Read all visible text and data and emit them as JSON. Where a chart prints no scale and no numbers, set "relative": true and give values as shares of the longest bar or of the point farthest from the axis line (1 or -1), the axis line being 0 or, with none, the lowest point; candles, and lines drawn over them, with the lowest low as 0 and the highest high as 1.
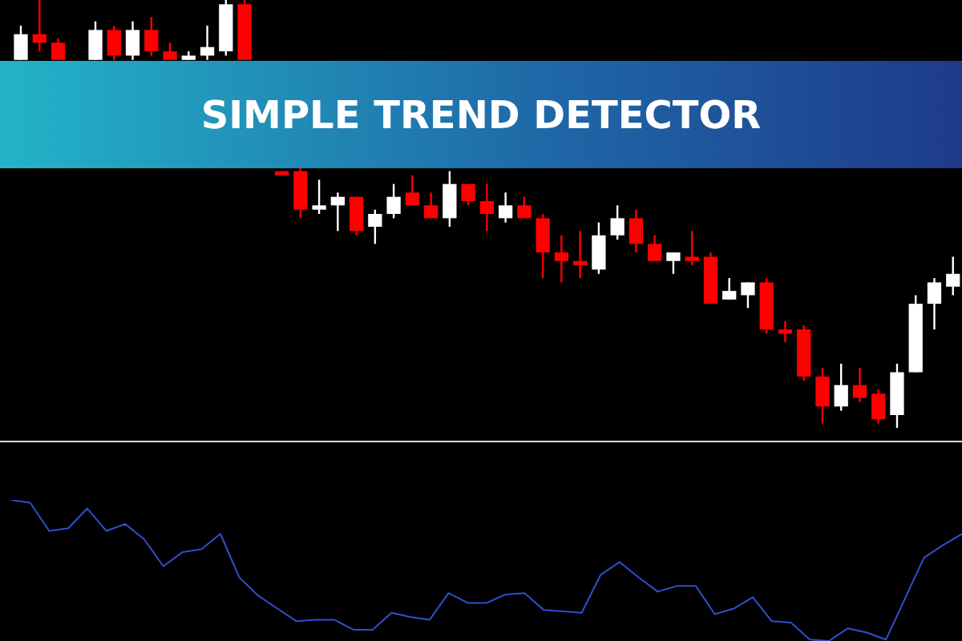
{
  "chart_data": [
    {
      "type": "candlestick",
      "title": "SIMPLE TREND DETECTOR",
      "relative": true,
      "tick_labels": false,
      "categories": [
        null,
        null,
        null,
        null,
        null,
        null,
        null,
        null,
        null,
        null,
        null,
        null,
        null,
        null,
        null,
        null,
        null,
        null,
        null,
        null,
        null,
        null,
        null,
        null,
        null,
        null,
        null,
        null,
        null,
        null,
        null,
        null,
        null,
        null,
        null,
        null,
        null,
        null,
        null,
        null,
        null,
        null,
        null,
        null,
        null,
        null,
        null,
        null,
        null,
        null,
        null
      ],
      "ohlc": [
        [
          0.86,
          0.94,
          0.86,
          0.92
        ],
        [
          0.92,
          1,
          0.88,
          0.9
        ],
        [
          0.9,
          0.91,
          0.86,
          0.86
        ],
        null,
        [
          0.86,
          0.95,
          0.86,
          0.93
        ],
        [
          0.93,
          0.94,
          0.86,
          0.87
        ],
        [
          0.87,
          0.95,
          0.86,
          0.93
        ],
        [
          0.93,
          0.96,
          0.87,
          0.88
        ],
        [
          0.88,
          0.9,
          0.86,
          0.86
        ],
        [
          0.86,
          0.88,
          0.86,
          0.87
        ],
        [
          0.87,
          0.94,
          0.86,
          0.89
        ],
        [
          0.88,
          1,
          0.87,
          0.99
        ],
        [
          0.99,
          1,
          0.86,
          0.86
        ],
        null,
        [
          0.6,
          0.6,
          0.59,
          0.59
        ],
        [
          0.6,
          0.61,
          0.49,
          0.51
        ],
        [
          0.51,
          0.58,
          0.5,
          0.52
        ],
        [
          0.52,
          0.55,
          0.46,
          0.54
        ],
        [
          0.54,
          0.54,
          0.45,
          0.46
        ],
        [
          0.47,
          0.51,
          0.43,
          0.5
        ],
        [
          0.5,
          0.57,
          0.49,
          0.54
        ],
        [
          0.55,
          0.59,
          0.52,
          0.52
        ],
        [
          0.52,
          0.55,
          0.49,
          0.49
        ],
        [
          0.49,
          0.6,
          0.47,
          0.57
        ],
        [
          0.57,
          0.57,
          0.52,
          0.53
        ],
        [
          0.53,
          0.57,
          0.46,
          0.5
        ],
        [
          0.49,
          0.55,
          0.48,
          0.52
        ],
        [
          0.52,
          0.54,
          0.49,
          0.49
        ],
        [
          0.49,
          0.5,
          0.35,
          0.41
        ],
        [
          0.41,
          0.45,
          0.34,
          0.39
        ],
        [
          0.39,
          0.46,
          0.35,
          0.38
        ],
        [
          0.37,
          0.48,
          0.36,
          0.45
        ],
        [
          0.45,
          0.52,
          0.44,
          0.49
        ],
        [
          0.49,
          0.51,
          0.41,
          0.43
        ],
        [
          0.43,
          0.45,
          0.39,
          0.39
        ],
        [
          0.39,
          0.41,
          0.36,
          0.41
        ],
        [
          0.4,
          0.46,
          0.38,
          0.39
        ],
        [
          0.4,
          0.41,
          0.29,
          0.29
        ],
        [
          0.3,
          0.35,
          0.3,
          0.32
        ],
        [
          0.31,
          0.34,
          0.28,
          0.34
        ],
        [
          0.34,
          0.35,
          0.22,
          0.23
        ],
        [
          0.23,
          0.25,
          0.2,
          0.22
        ],
        [
          0.23,
          0.24,
          0.11,
          0.12
        ],
        [
          0.12,
          0.14,
          0.01,
          0.05
        ],
        [
          0.05,
          0.15,
          0.04,
          0.1
        ],
        [
          0.1,
          0.14,
          0.06,
          0.07
        ],
        [
          0.08,
          0.09,
          0.01,
          0.02
        ],
        [
          0.03,
          0.15,
          0,
          0.13
        ],
        [
          0.13,
          0.31,
          0.13,
          0.29
        ],
        [
          0.29,
          0.35,
          0.23,
          0.34
        ],
        [
          0.33,
          0.4,
          0.31,
          0.36
        ]
      ],
      "colors": [
        "#ffffff",
        "#ff0000",
        "#ff0000",
        null,
        "#ffffff",
        "#ff0000",
        "#ffffff",
        "#ff0000",
        "#ff0000",
        "#ffffff",
        "#ffffff",
        "#ffffff",
        "#ff0000",
        null,
        "#ff0000",
        "#ff0000",
        "#ffffff",
        "#ffffff",
        "#ff0000",
        "#ffffff",
        "#ffffff",
        "#ff0000",
        "#ff0000",
        "#ffffff",
        "#ff0000",
        "#ff0000",
        "#ffffff",
        "#ff0000",
        "#ff0000",
        "#ff0000",
        "#ff0000",
        "#ffffff",
        "#ffffff",
        "#ff0000",
        "#ff0000",
        "#ffffff",
        "#ff0000",
        "#ff0000",
        "#ffffff",
        "#ffffff",
        "#ff0000",
        "#ff0000",
        "#ff0000",
        "#ff0000",
        "#ffffff",
        "#ff0000",
        "#ff0000",
        "#ffffff",
        "#ffffff",
        "#ffffff",
        "#ffffff"
      ]
    },
    {
      "type": "line",
      "relative": true,
      "tick_labels": false,
      "marker": "none",
      "line_style": "solid",
      "categories": [
        null,
        null,
        null,
        null,
        null,
        null,
        null,
        null,
        null,
        null,
        null,
        null,
        null,
        null,
        null,
        null,
        null,
        null,
        null,
        null,
        null,
        null,
        null,
        null,
        null,
        null,
        null,
        null,
        null,
        null,
        null,
        null,
        null,
        null,
        null,
        null,
        null,
        null,
        null,
        null,
        null,
        null,
        null,
        null,
        null,
        null,
        null,
        null,
        null,
        null,
        null
      ],
      "series": [
        {
          "color": "#2f4fd0",
          "values": [
            1,
            0.98,
            0.78,
            0.8,
            0.94,
            0.78,
            0.83,
            0.72,
            0.53,
            0.63,
            0.65,
            0.76,
            0.45,
            0.32,
            0.23,
            0.14,
            0.15,
            0.15,
            0.08,
            0.08,
            0.2,
            0.17,
            0.15,
            0.34,
            0.27,
            0.27,
            0.33,
            0.34,
            0.22,
            0.21,
            0.2,
            0.47,
            0.56,
            0.45,
            0.35,
            0.39,
            0.39,
            0.19,
            0.23,
            0.31,
            0.14,
            0.13,
            0.01,
            0,
            0.09,
            0.06,
            0.01,
            0.3,
            0.59,
            0.68,
            0.76
          ]
        }
      ]
    }
  ]
}
